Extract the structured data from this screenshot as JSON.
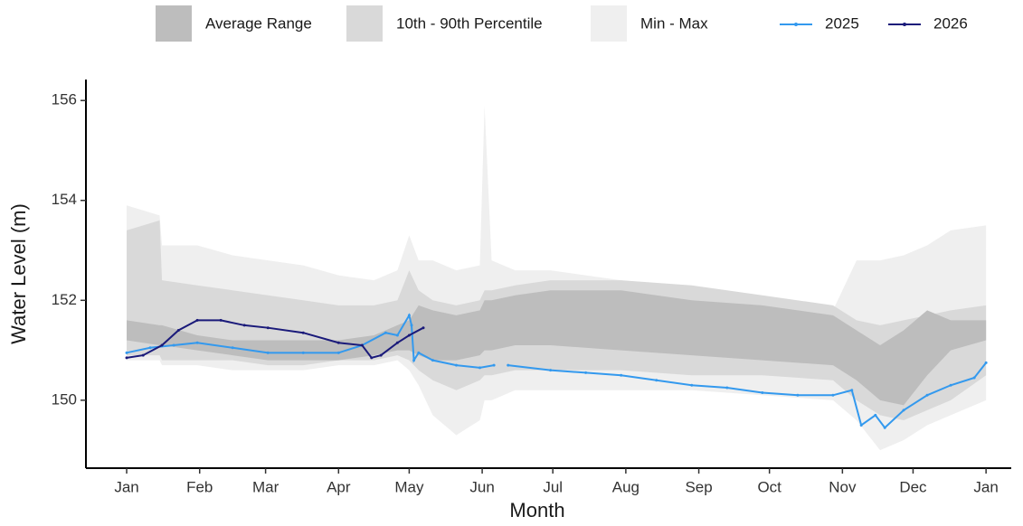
{
  "chart_data": {
    "type": "line",
    "x_label": "Month",
    "y_label": "Water Level (m)",
    "xlim": [
      -17.3,
      375.7
    ],
    "ylim": [
      148.64,
      156.42
    ],
    "xticks": [
      {
        "value": 0,
        "label": "Jan"
      },
      {
        "value": 31,
        "label": "Feb"
      },
      {
        "value": 59,
        "label": "Mar"
      },
      {
        "value": 90,
        "label": "Apr"
      },
      {
        "value": 120,
        "label": "May"
      },
      {
        "value": 151,
        "label": "Jun"
      },
      {
        "value": 181,
        "label": "Jul"
      },
      {
        "value": 212,
        "label": "Aug"
      },
      {
        "value": 243,
        "label": "Sep"
      },
      {
        "value": 273,
        "label": "Oct"
      },
      {
        "value": 304,
        "label": "Nov"
      },
      {
        "value": 334,
        "label": "Dec"
      },
      {
        "value": 365,
        "label": "Jan"
      }
    ],
    "yticks": [
      150,
      152,
      154,
      156
    ],
    "bands": [
      {
        "name": "Min - Max",
        "color": "#efefef",
        "x": [
          0,
          14,
          15,
          30,
          45,
          60,
          75,
          90,
          105,
          115,
          120,
          124,
          130,
          140,
          150,
          152,
          155,
          165,
          180,
          210,
          240,
          270,
          300,
          310,
          320,
          330,
          340,
          350,
          365
        ],
        "upper": [
          153.9,
          153.7,
          153.1,
          153.1,
          152.9,
          152.8,
          152.7,
          152.5,
          152.4,
          152.6,
          153.3,
          152.8,
          152.8,
          152.6,
          152.7,
          155.9,
          152.8,
          152.6,
          152.6,
          152.4,
          152.2,
          152.0,
          151.8,
          152.8,
          152.8,
          152.9,
          153.1,
          153.4,
          153.5
        ],
        "lower": [
          150.8,
          150.8,
          150.7,
          150.7,
          150.6,
          150.6,
          150.6,
          150.7,
          150.7,
          150.8,
          150.6,
          150.3,
          149.7,
          149.3,
          149.6,
          150.0,
          150.0,
          150.2,
          150.2,
          150.2,
          150.2,
          150.1,
          150.0,
          149.6,
          149.0,
          149.2,
          149.5,
          149.7,
          150.0
        ]
      },
      {
        "name": "10th - 90th Percentile",
        "color": "#d9d9d9",
        "x": [
          0,
          14,
          15,
          30,
          45,
          60,
          75,
          90,
          105,
          115,
          120,
          124,
          130,
          140,
          150,
          152,
          155,
          165,
          180,
          210,
          240,
          270,
          300,
          310,
          320,
          330,
          340,
          350,
          365
        ],
        "upper": [
          153.4,
          153.6,
          152.4,
          152.3,
          152.2,
          152.1,
          152.0,
          151.9,
          151.9,
          152.0,
          152.6,
          152.2,
          152.0,
          151.9,
          152.0,
          152.2,
          152.2,
          152.3,
          152.4,
          152.4,
          152.3,
          152.1,
          151.9,
          151.6,
          151.5,
          151.6,
          151.7,
          151.8,
          151.9
        ],
        "lower": [
          150.9,
          150.9,
          150.8,
          150.8,
          150.8,
          150.7,
          150.7,
          150.8,
          150.8,
          150.9,
          150.8,
          150.6,
          150.4,
          150.2,
          150.4,
          150.5,
          150.5,
          150.6,
          150.6,
          150.6,
          150.5,
          150.5,
          150.4,
          150.0,
          149.7,
          149.6,
          149.8,
          150.0,
          150.5
        ]
      },
      {
        "name": "Average Range",
        "color": "#bdbdbd",
        "x": [
          0,
          14,
          15,
          30,
          45,
          60,
          75,
          90,
          105,
          115,
          120,
          124,
          130,
          140,
          150,
          152,
          155,
          165,
          180,
          210,
          240,
          270,
          300,
          310,
          320,
          330,
          340,
          350,
          365
        ],
        "upper": [
          151.6,
          151.5,
          151.5,
          151.3,
          151.2,
          151.2,
          151.2,
          151.2,
          151.3,
          151.5,
          151.6,
          151.9,
          151.8,
          151.7,
          151.8,
          152.0,
          152.0,
          152.1,
          152.2,
          152.2,
          152.0,
          151.9,
          151.7,
          151.4,
          151.1,
          151.4,
          151.8,
          151.6,
          151.6
        ],
        "lower": [
          151.2,
          151.1,
          151.1,
          151.0,
          150.9,
          150.8,
          150.8,
          150.8,
          150.9,
          151.0,
          151.0,
          150.9,
          150.8,
          150.8,
          150.9,
          151.0,
          151.0,
          151.1,
          151.1,
          151.0,
          150.9,
          150.8,
          150.7,
          150.4,
          150.0,
          149.9,
          150.5,
          151.0,
          151.2
        ]
      }
    ],
    "series": [
      {
        "name": "2025",
        "color": "#3399ee",
        "x": [
          0,
          10,
          20,
          30,
          45,
          60,
          75,
          90,
          100,
          110,
          115,
          120,
          121,
          122,
          124,
          130,
          140,
          150,
          156,
          158,
          162,
          180,
          195,
          210,
          225,
          240,
          255,
          270,
          285,
          300,
          308,
          312,
          318,
          322,
          330,
          340,
          350,
          360,
          365
        ],
        "values": [
          150.95,
          151.05,
          151.1,
          151.15,
          151.05,
          150.95,
          150.95,
          150.95,
          151.1,
          151.35,
          151.3,
          151.7,
          151.5,
          150.8,
          150.95,
          150.8,
          150.7,
          150.65,
          150.7,
          null,
          150.7,
          150.6,
          150.55,
          150.5,
          150.4,
          150.3,
          150.25,
          150.15,
          150.1,
          150.1,
          150.2,
          149.5,
          149.7,
          149.45,
          149.8,
          150.1,
          150.3,
          150.45,
          150.75
        ]
      },
      {
        "name": "2026",
        "color": "#1a1a7a",
        "x": [
          0,
          7,
          15,
          22,
          30,
          40,
          50,
          60,
          75,
          90,
          100,
          104,
          108,
          115,
          120,
          126
        ],
        "values": [
          150.85,
          150.9,
          151.1,
          151.4,
          151.6,
          151.6,
          151.5,
          151.45,
          151.35,
          151.15,
          151.1,
          150.85,
          150.9,
          151.15,
          151.3,
          151.45
        ]
      }
    ]
  }
}
